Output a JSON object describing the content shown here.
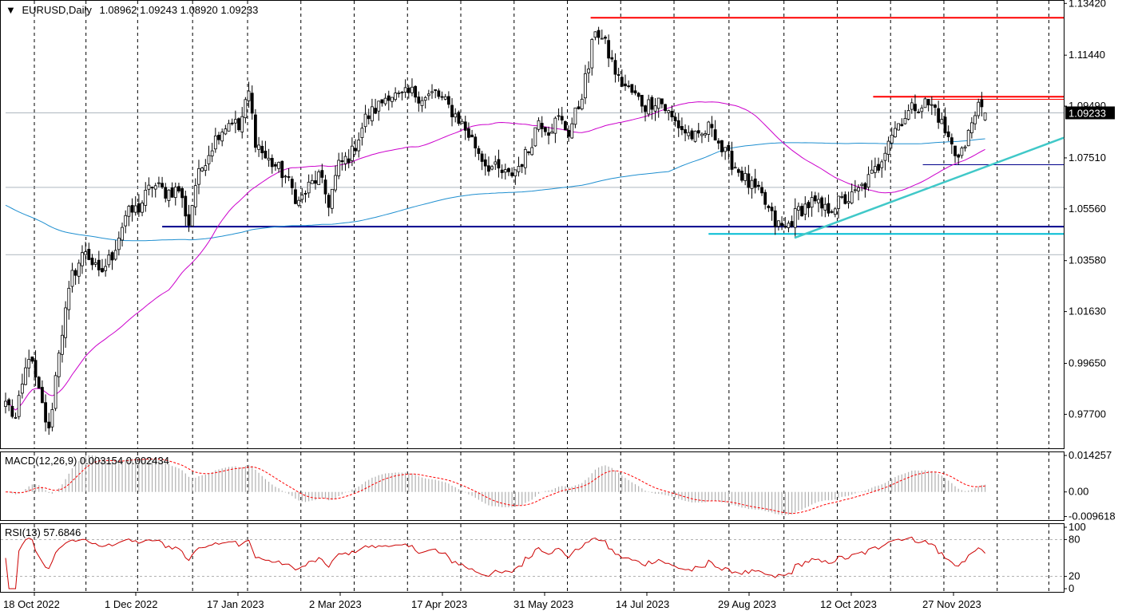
{
  "header": {
    "symbol": "EURUSD,Daily",
    "ohlc": "1.08962 1.09243 1.08920 1.09233",
    "current_price": "1.09233"
  },
  "colors": {
    "bull": "#000000",
    "bear": "#000000",
    "ma_short": "#cc00cc",
    "ma_long": "#1f8fd0",
    "resistance": "#ff0000",
    "support": "#00008b",
    "support_alt": "#00bcd4",
    "trend": "#40c8c8",
    "macd_signal": "#ff0000",
    "macd_hist": "#b0b0b0",
    "rsi": "#cc0000",
    "grid": "#000000"
  },
  "chart_data": [
    {
      "type": "candlestick",
      "title": "EURUSD,Daily",
      "ylim": [
        0.964,
        1.1352
      ],
      "y_ticks": [
        "1.13420",
        "1.11440",
        "1.09490",
        "1.07510",
        "1.05560",
        "1.03580",
        "1.01630",
        "0.99650",
        "0.97700"
      ],
      "x_ticks": [
        "18 Oct 2022",
        "1 Dec 2022",
        "17 Jan 2023",
        "2 Mar 2023",
        "17 Apr 2023",
        "31 May 2023",
        "14 Jul 2023",
        "29 Aug 2023",
        "12 Oct 2023",
        "27 Nov 2023"
      ],
      "anchors": [
        [
          0,
          0.982
        ],
        [
          3,
          0.975
        ],
        [
          7,
          1.0
        ],
        [
          10,
          0.985
        ],
        [
          13,
          0.97
        ],
        [
          16,
          1.002
        ],
        [
          20,
          1.03
        ],
        [
          24,
          1.04
        ],
        [
          28,
          1.03
        ],
        [
          32,
          1.038
        ],
        [
          36,
          1.053
        ],
        [
          40,
          1.056
        ],
        [
          44,
          1.065
        ],
        [
          48,
          1.062
        ],
        [
          52,
          1.063
        ],
        [
          55,
          1.05
        ],
        [
          57,
          1.065
        ],
        [
          60,
          1.075
        ],
        [
          64,
          1.085
        ],
        [
          68,
          1.09
        ],
        [
          70,
          1.086
        ],
        [
          73,
          1.1
        ],
        [
          75,
          1.082
        ],
        [
          78,
          1.075
        ],
        [
          81,
          1.072
        ],
        [
          84,
          1.068
        ],
        [
          88,
          1.058
        ],
        [
          91,
          1.064
        ],
        [
          94,
          1.068
        ],
        [
          97,
          1.058
        ],
        [
          100,
          1.072
        ],
        [
          104,
          1.077
        ],
        [
          108,
          1.09
        ],
        [
          112,
          1.095
        ],
        [
          115,
          1.1
        ],
        [
          118,
          1.098
        ],
        [
          122,
          1.1
        ],
        [
          126,
          1.098
        ],
        [
          129,
          1.1
        ],
        [
          132,
          1.096
        ],
        [
          136,
          1.09
        ],
        [
          140,
          1.082
        ],
        [
          144,
          1.073
        ],
        [
          148,
          1.07
        ],
        [
          151,
          1.068
        ],
        [
          154,
          1.072
        ],
        [
          157,
          1.078
        ],
        [
          160,
          1.09
        ],
        [
          163,
          1.086
        ],
        [
          166,
          1.09
        ],
        [
          169,
          1.085
        ],
        [
          172,
          1.095
        ],
        [
          175,
          1.11
        ],
        [
          177,
          1.125
        ],
        [
          180,
          1.118
        ],
        [
          184,
          1.105
        ],
        [
          188,
          1.1
        ],
        [
          192,
          1.095
        ],
        [
          196,
          1.098
        ],
        [
          200,
          1.09
        ],
        [
          204,
          1.085
        ],
        [
          208,
          1.082
        ],
        [
          212,
          1.088
        ],
        [
          215,
          1.078
        ],
        [
          219,
          1.072
        ],
        [
          223,
          1.065
        ],
        [
          227,
          1.06
        ],
        [
          231,
          1.05
        ],
        [
          234,
          1.048
        ],
        [
          238,
          1.055
        ],
        [
          242,
          1.058
        ],
        [
          246,
          1.055
        ],
        [
          250,
          1.058
        ],
        [
          254,
          1.06
        ],
        [
          258,
          1.065
        ],
        [
          262,
          1.072
        ],
        [
          265,
          1.083
        ],
        [
          269,
          1.09
        ],
        [
          273,
          1.095
        ],
        [
          276,
          1.096
        ],
        [
          279,
          1.094
        ],
        [
          282,
          1.085
        ],
        [
          285,
          1.077
        ],
        [
          288,
          1.079
        ],
        [
          291,
          1.094
        ],
        [
          294,
          1.0923
        ]
      ],
      "hlines": [
        {
          "y": 1.1287,
          "from": 175.6,
          "to": 320,
          "color": "resistance",
          "width": 2
        },
        {
          "y": 1.0985,
          "from": 260.4,
          "to": 320,
          "color": "resistance",
          "width": 2
        },
        {
          "y": 1.0975,
          "from": 277.7,
          "to": 320,
          "color": "resistance",
          "width": 1
        },
        {
          "y": 1.0488,
          "from": 47,
          "to": 320,
          "color": "support",
          "width": 2
        },
        {
          "y": 1.046,
          "from": 211,
          "to": 320,
          "color": "support_alt",
          "width": 2
        },
        {
          "y": 1.0725,
          "from": 275.3,
          "to": 320,
          "color": "support",
          "width": 1
        },
        {
          "y": 1.0923,
          "from": 0,
          "to": 320,
          "color": "grid_h",
          "width": 1
        },
        {
          "y": 1.0638,
          "from": 0,
          "to": 320,
          "color": "grid_h",
          "width": 1
        },
        {
          "y": 1.0381,
          "from": 0,
          "to": 320,
          "color": "grid_h",
          "width": 1
        }
      ],
      "trendline": {
        "from": [
          236.8,
          1.0445
        ],
        "to": [
          320,
          1.0828
        ]
      }
    },
    {
      "type": "macd",
      "label": "MACD(12,26,9) 0.003154 0.002434",
      "ylim": [
        -0.011,
        0.0155
      ],
      "y_ticks": [
        "0.014257",
        "0.00",
        "-0.009618"
      ]
    },
    {
      "type": "rsi",
      "label": "RSI(13) 57.6846",
      "ylim": [
        0,
        100
      ],
      "y_ticks": [
        "100",
        "80",
        "20",
        "0"
      ]
    }
  ]
}
